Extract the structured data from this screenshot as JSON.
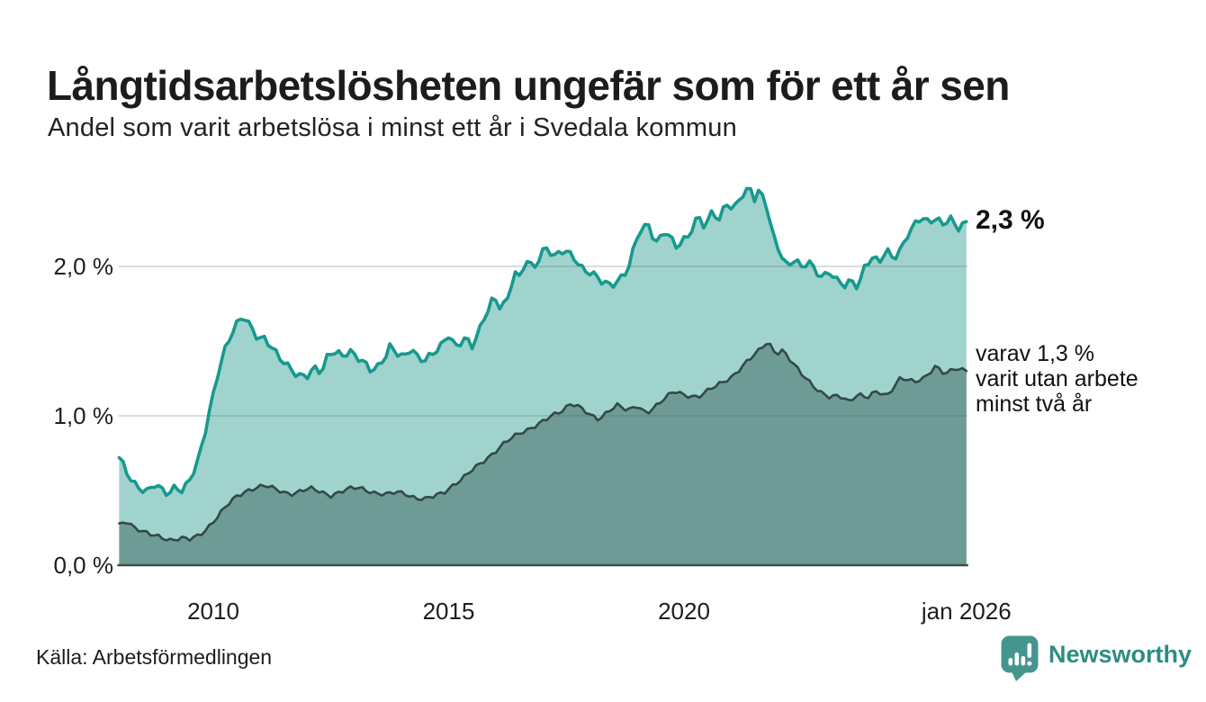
{
  "title": "Långtidsarbetslösheten ungefär som för ett år sen",
  "subtitle": "Andel som varit arbetslösa i minst ett år i Svedala kommun",
  "source": "Källa: Arbetsförmedlingen",
  "brand": {
    "name": "Newsworthy",
    "color": "#2e8c84",
    "icon_color": "#44958e",
    "icon": "newsworthy-bubble-chart-icon"
  },
  "annotations": {
    "latest_total": "2,3 %",
    "secondary_lines": [
      "varav 1,3 %",
      "varit utan arbete",
      "minst två år"
    ]
  },
  "chart_data": {
    "type": "area",
    "title": "Långtidsarbetslösheten ungefär som för ett år sen",
    "subtitle": "Andel som varit arbetslösa i minst ett år i Svedala kommun",
    "unit": "%",
    "grid": true,
    "legend_position": "right-annotations",
    "x_range": [
      2008.0,
      2026.0
    ],
    "ylim": [
      0,
      2.8
    ],
    "y_ticks": [
      {
        "label": "0,0 %",
        "value": 0
      },
      {
        "label": "1,0 %",
        "value": 1
      },
      {
        "label": "2,0 %",
        "value": 2
      }
    ],
    "x_ticks": [
      {
        "label": "2010",
        "year": 2010
      },
      {
        "label": "2015",
        "year": 2015
      },
      {
        "label": "2020",
        "year": 2020
      },
      {
        "label": "jan 2026",
        "year": 2026.0
      }
    ],
    "colors": {
      "grid": "rgba(90,95,110,0.22)",
      "baseline": "#3e4c48",
      "text": "#1d1d1b"
    },
    "series": [
      {
        "id": "minst-ett-ar",
        "name": "Arbetslösa minst ett år",
        "latest_value": 2.3,
        "latest_label": "2,3 %",
        "color": "#17998e",
        "fill": "#a0d3cd",
        "points": [
          [
            2008.0,
            0.72
          ],
          [
            2008.15,
            0.63
          ],
          [
            2008.3,
            0.56
          ],
          [
            2008.45,
            0.52
          ],
          [
            2008.6,
            0.49
          ],
          [
            2008.75,
            0.53
          ],
          [
            2008.9,
            0.5
          ],
          [
            2009.05,
            0.48
          ],
          [
            2009.2,
            0.54
          ],
          [
            2009.35,
            0.5
          ],
          [
            2009.5,
            0.57
          ],
          [
            2009.65,
            0.66
          ],
          [
            2009.8,
            0.85
          ],
          [
            2009.95,
            1.08
          ],
          [
            2010.1,
            1.3
          ],
          [
            2010.25,
            1.45
          ],
          [
            2010.4,
            1.55
          ],
          [
            2010.55,
            1.63
          ],
          [
            2010.65,
            1.66
          ],
          [
            2010.8,
            1.6
          ],
          [
            2010.95,
            1.53
          ],
          [
            2011.1,
            1.52
          ],
          [
            2011.2,
            1.47
          ],
          [
            2011.4,
            1.38
          ],
          [
            2011.6,
            1.33
          ],
          [
            2011.8,
            1.28
          ],
          [
            2012.0,
            1.27
          ],
          [
            2012.15,
            1.31
          ],
          [
            2012.3,
            1.28
          ],
          [
            2012.45,
            1.42
          ],
          [
            2012.6,
            1.44
          ],
          [
            2012.75,
            1.41
          ],
          [
            2012.9,
            1.43
          ],
          [
            2013.05,
            1.38
          ],
          [
            2013.2,
            1.35
          ],
          [
            2013.35,
            1.31
          ],
          [
            2013.5,
            1.34
          ],
          [
            2013.65,
            1.4
          ],
          [
            2013.75,
            1.46
          ],
          [
            2013.9,
            1.41
          ],
          [
            2014.05,
            1.38
          ],
          [
            2014.2,
            1.46
          ],
          [
            2014.35,
            1.4
          ],
          [
            2014.5,
            1.38
          ],
          [
            2014.65,
            1.41
          ],
          [
            2014.8,
            1.44
          ],
          [
            2015.0,
            1.54
          ],
          [
            2015.15,
            1.47
          ],
          [
            2015.35,
            1.53
          ],
          [
            2015.5,
            1.46
          ],
          [
            2015.65,
            1.56
          ],
          [
            2015.8,
            1.68
          ],
          [
            2015.95,
            1.8
          ],
          [
            2016.1,
            1.74
          ],
          [
            2016.25,
            1.78
          ],
          [
            2016.4,
            1.96
          ],
          [
            2016.5,
            1.91
          ],
          [
            2016.65,
            2.04
          ],
          [
            2016.8,
            1.99
          ],
          [
            2016.95,
            2.08
          ],
          [
            2017.05,
            2.14
          ],
          [
            2017.25,
            2.06
          ],
          [
            2017.45,
            2.1
          ],
          [
            2017.65,
            2.07
          ],
          [
            2017.85,
            1.99
          ],
          [
            2018.05,
            1.95
          ],
          [
            2018.25,
            1.89
          ],
          [
            2018.45,
            1.87
          ],
          [
            2018.65,
            1.93
          ],
          [
            2018.8,
            1.98
          ],
          [
            2019.05,
            2.23
          ],
          [
            2019.25,
            2.27
          ],
          [
            2019.4,
            2.16
          ],
          [
            2019.6,
            2.25
          ],
          [
            2019.85,
            2.12
          ],
          [
            2020.1,
            2.2
          ],
          [
            2020.3,
            2.35
          ],
          [
            2020.45,
            2.27
          ],
          [
            2020.6,
            2.37
          ],
          [
            2020.75,
            2.3
          ],
          [
            2020.9,
            2.42
          ],
          [
            2021.05,
            2.38
          ],
          [
            2021.2,
            2.48
          ],
          [
            2021.4,
            2.53
          ],
          [
            2021.5,
            2.45
          ],
          [
            2021.6,
            2.5
          ],
          [
            2021.75,
            2.4
          ],
          [
            2021.9,
            2.2
          ],
          [
            2022.05,
            2.1
          ],
          [
            2022.2,
            2.0
          ],
          [
            2022.35,
            2.05
          ],
          [
            2022.5,
            1.98
          ],
          [
            2022.65,
            2.03
          ],
          [
            2022.8,
            1.97
          ],
          [
            2022.95,
            1.94
          ],
          [
            2023.1,
            1.97
          ],
          [
            2023.25,
            1.9
          ],
          [
            2023.4,
            1.86
          ],
          [
            2023.55,
            1.9
          ],
          [
            2023.7,
            1.87
          ],
          [
            2023.85,
            2.02
          ],
          [
            2024.0,
            2.06
          ],
          [
            2024.15,
            2.02
          ],
          [
            2024.3,
            2.1
          ],
          [
            2024.45,
            2.05
          ],
          [
            2024.6,
            2.12
          ],
          [
            2024.75,
            2.22
          ],
          [
            2024.9,
            2.28
          ],
          [
            2025.05,
            2.32
          ],
          [
            2025.2,
            2.28
          ],
          [
            2025.35,
            2.33
          ],
          [
            2025.5,
            2.29
          ],
          [
            2025.65,
            2.34
          ],
          [
            2025.8,
            2.24
          ],
          [
            2026.0,
            2.3
          ]
        ]
      },
      {
        "id": "minst-tva-ar",
        "name": "Utan arbete minst två år",
        "latest_value": 1.3,
        "latest_label": "1,3 %",
        "color": "#324944",
        "fill": "#6f9b97",
        "points": [
          [
            2008.0,
            0.28
          ],
          [
            2008.15,
            0.3
          ],
          [
            2008.3,
            0.26
          ],
          [
            2008.5,
            0.22
          ],
          [
            2008.7,
            0.2
          ],
          [
            2008.9,
            0.19
          ],
          [
            2009.1,
            0.17
          ],
          [
            2009.3,
            0.18
          ],
          [
            2009.5,
            0.17
          ],
          [
            2009.7,
            0.2
          ],
          [
            2009.9,
            0.26
          ],
          [
            2010.1,
            0.33
          ],
          [
            2010.3,
            0.4
          ],
          [
            2010.5,
            0.46
          ],
          [
            2010.7,
            0.5
          ],
          [
            2010.9,
            0.52
          ],
          [
            2011.1,
            0.53
          ],
          [
            2011.3,
            0.51
          ],
          [
            2011.5,
            0.49
          ],
          [
            2011.7,
            0.48
          ],
          [
            2011.9,
            0.5
          ],
          [
            2012.1,
            0.51
          ],
          [
            2012.3,
            0.49
          ],
          [
            2012.5,
            0.47
          ],
          [
            2012.7,
            0.49
          ],
          [
            2012.9,
            0.51
          ],
          [
            2013.1,
            0.52
          ],
          [
            2013.3,
            0.5
          ],
          [
            2013.5,
            0.48
          ],
          [
            2013.7,
            0.47
          ],
          [
            2013.9,
            0.49
          ],
          [
            2014.1,
            0.48
          ],
          [
            2014.3,
            0.45
          ],
          [
            2014.5,
            0.44
          ],
          [
            2014.7,
            0.46
          ],
          [
            2014.9,
            0.49
          ],
          [
            2015.1,
            0.54
          ],
          [
            2015.3,
            0.58
          ],
          [
            2015.6,
            0.66
          ],
          [
            2015.9,
            0.74
          ],
          [
            2016.2,
            0.82
          ],
          [
            2016.5,
            0.88
          ],
          [
            2016.8,
            0.93
          ],
          [
            2017.1,
            0.98
          ],
          [
            2017.4,
            1.03
          ],
          [
            2017.6,
            1.09
          ],
          [
            2017.8,
            1.06
          ],
          [
            2018.0,
            1.0
          ],
          [
            2018.2,
            0.97
          ],
          [
            2018.4,
            1.04
          ],
          [
            2018.6,
            1.08
          ],
          [
            2018.8,
            1.03
          ],
          [
            2019.0,
            1.06
          ],
          [
            2019.2,
            1.02
          ],
          [
            2019.4,
            1.07
          ],
          [
            2019.6,
            1.12
          ],
          [
            2019.8,
            1.16
          ],
          [
            2020.0,
            1.14
          ],
          [
            2020.3,
            1.13
          ],
          [
            2020.7,
            1.2
          ],
          [
            2021.0,
            1.26
          ],
          [
            2021.3,
            1.35
          ],
          [
            2021.55,
            1.42
          ],
          [
            2021.78,
            1.5
          ],
          [
            2021.95,
            1.42
          ],
          [
            2022.1,
            1.44
          ],
          [
            2022.3,
            1.35
          ],
          [
            2022.5,
            1.28
          ],
          [
            2022.7,
            1.22
          ],
          [
            2022.9,
            1.16
          ],
          [
            2023.1,
            1.12
          ],
          [
            2023.3,
            1.13
          ],
          [
            2023.5,
            1.1
          ],
          [
            2023.7,
            1.15
          ],
          [
            2023.9,
            1.12
          ],
          [
            2024.1,
            1.16
          ],
          [
            2024.3,
            1.13
          ],
          [
            2024.6,
            1.26
          ],
          [
            2024.9,
            1.22
          ],
          [
            2025.1,
            1.25
          ],
          [
            2025.35,
            1.34
          ],
          [
            2025.55,
            1.28
          ],
          [
            2025.75,
            1.31
          ],
          [
            2026.0,
            1.3
          ]
        ]
      }
    ]
  }
}
